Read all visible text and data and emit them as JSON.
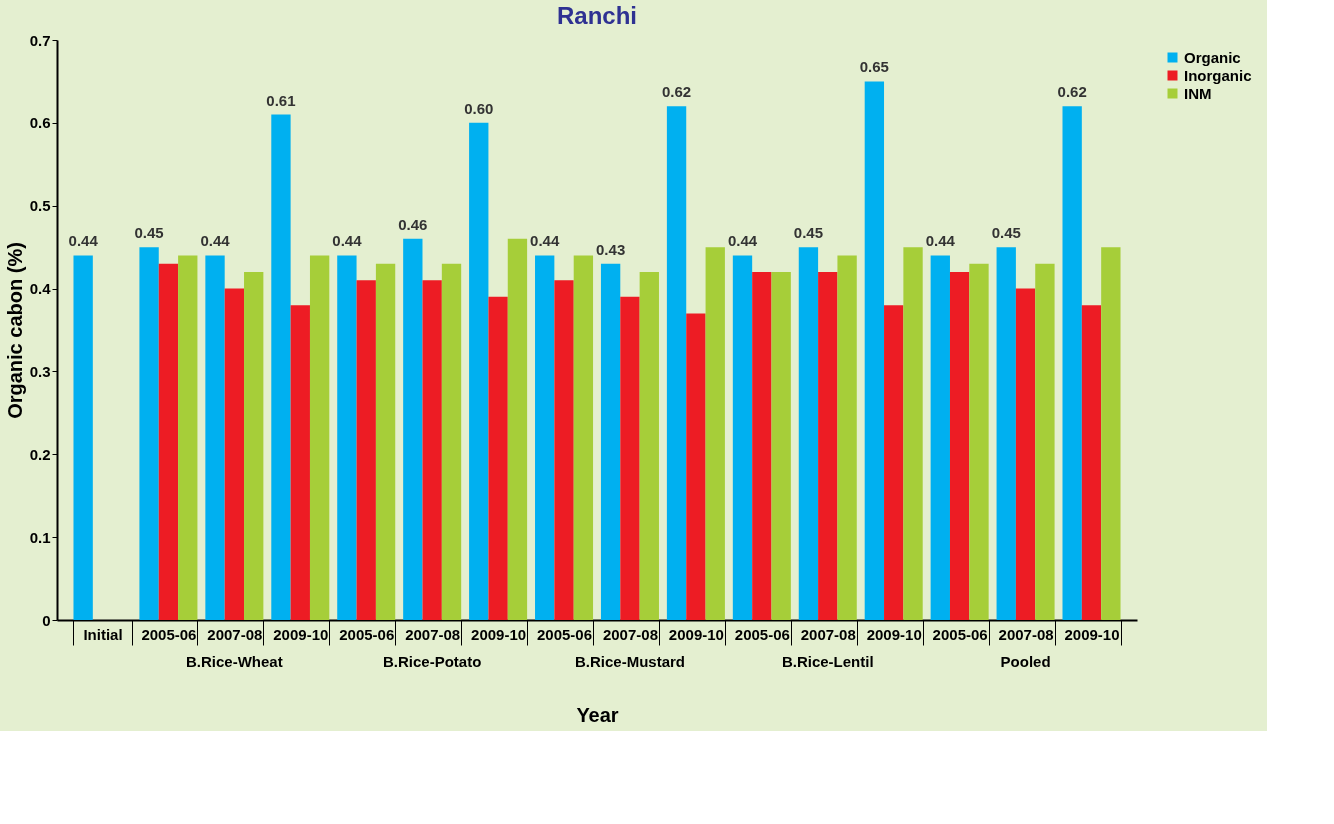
{
  "chart_data": {
    "type": "bar",
    "title": "Ranchi",
    "xlabel": "Year",
    "ylabel": "Organic cabon (%)",
    "categories": [
      "Initial",
      "2005-06",
      "2007-08",
      "2009-10",
      "2005-06",
      "2007-08",
      "2009-10",
      "2005-06",
      "2007-08",
      "2009-10",
      "2005-06",
      "2007-08",
      "2009-10",
      "2005-06",
      "2007-08",
      "2009-10"
    ],
    "series": [
      {
        "name": "Organic",
        "color": "#00b0f0",
        "values": [
          0.44,
          0.45,
          0.44,
          0.61,
          0.44,
          0.46,
          0.6,
          0.44,
          0.43,
          0.62,
          0.44,
          0.45,
          0.65,
          0.44,
          0.45,
          0.62
        ],
        "value_labels": [
          "0.44",
          "0.45",
          "0.44",
          "0.61",
          "0.44",
          "0.46",
          "0.60",
          "0.44",
          "0.43",
          "0.62",
          "0.44",
          "0.45",
          "0.65",
          "0.44",
          "0.45",
          "0.62"
        ]
      },
      {
        "name": "Inorganic",
        "color": "#ed1c24",
        "values": [
          null,
          0.43,
          0.4,
          0.38,
          0.41,
          0.41,
          0.39,
          0.41,
          0.39,
          0.37,
          0.42,
          0.42,
          0.38,
          0.42,
          0.4,
          0.38
        ]
      },
      {
        "name": "INM",
        "color": "#a6ce39",
        "values": [
          null,
          0.44,
          0.42,
          0.44,
          0.43,
          0.43,
          0.46,
          0.44,
          0.42,
          0.45,
          0.42,
          0.44,
          0.45,
          0.43,
          0.43,
          0.45
        ]
      }
    ],
    "annotations": [
      "B.Rice-Wheat",
      "B.Rice-Potato",
      "B.Rice-Mustard",
      "B.Rice-Lentil",
      "Pooled"
    ],
    "ylim": [
      0,
      0.7
    ],
    "yticks": [
      0,
      0.1,
      0.2,
      0.3,
      0.4,
      0.5,
      0.6,
      0.7
    ],
    "grid": false,
    "legend": "right"
  }
}
